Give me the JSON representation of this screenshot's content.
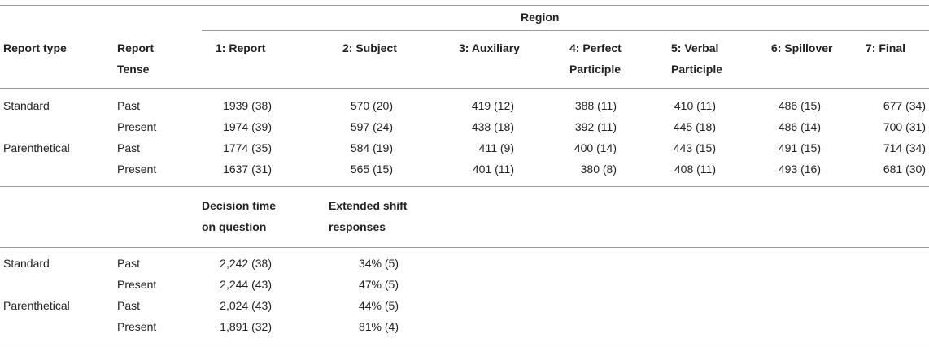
{
  "top_header": {
    "region_label": "Region",
    "report_type": "Report type",
    "report_tense_line1": "Report",
    "report_tense_line2": "Tense",
    "regions": [
      {
        "line1": "1: Report",
        "line2": ""
      },
      {
        "line1": "2: Subject",
        "line2": ""
      },
      {
        "line1": "3: Auxiliary",
        "line2": ""
      },
      {
        "line1": "4: Perfect",
        "line2": "Participle"
      },
      {
        "line1": "5: Verbal",
        "line2": "Participle"
      },
      {
        "line1": "6: Spillover",
        "line2": ""
      },
      {
        "line1": "7: Final",
        "line2": ""
      }
    ]
  },
  "top_rows": [
    {
      "type": "Standard",
      "tense": "Past",
      "values": [
        "1939 (38)",
        "570 (20)",
        "419 (12)",
        "388 (11)",
        "410 (11)",
        "486 (15)",
        "677 (34)"
      ]
    },
    {
      "type": "",
      "tense": "Present",
      "values": [
        "1974 (39)",
        "597 (24)",
        "438 (18)",
        "392 (11)",
        "445 (18)",
        "486 (14)",
        "700 (31)"
      ]
    },
    {
      "type": "Parenthetical",
      "tense": "Past",
      "values": [
        "1774 (35)",
        "584 (19)",
        "411 (9)",
        "400 (14)",
        "443 (15)",
        "491 (15)",
        "714 (34)"
      ]
    },
    {
      "type": "",
      "tense": "Present",
      "values": [
        "1637 (31)",
        "565 (15)",
        "401 (11)",
        "380 (8)",
        "408 (11)",
        "493 (16)",
        "681 (30)"
      ]
    }
  ],
  "bottom_header": {
    "col1_line1": "Decision time",
    "col1_line2": "on question",
    "col2_line1": "Extended shift",
    "col2_line2": "responses"
  },
  "bottom_rows": [
    {
      "type": "Standard",
      "tense": "Past",
      "values": [
        "2,242 (38)",
        "34% (5)"
      ]
    },
    {
      "type": "",
      "tense": "Present",
      "values": [
        "2,244 (43)",
        "47% (5)"
      ]
    },
    {
      "type": "Parenthetical",
      "tense": "Past",
      "values": [
        "2,024 (43)",
        "44% (5)"
      ]
    },
    {
      "type": "",
      "tense": "Present",
      "values": [
        "1,891 (32)",
        "81% (4)"
      ]
    }
  ]
}
